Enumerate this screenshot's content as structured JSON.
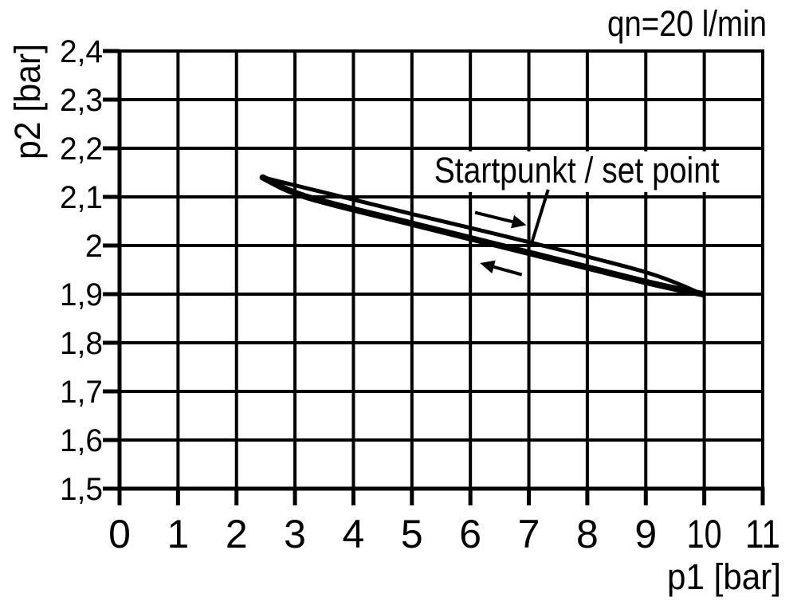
{
  "colors": {
    "foreground": "#000000",
    "background": "#ffffff"
  },
  "chart_data": {
    "type": "line",
    "title": "qn=20 l/min",
    "xlabel": "p1 [bar]",
    "ylabel": "p2 [bar]",
    "xlim": [
      0,
      11
    ],
    "ylim": [
      1.5,
      2.4
    ],
    "grid": true,
    "legend": "none",
    "x_ticks": [
      0,
      1,
      2,
      3,
      4,
      5,
      6,
      7,
      8,
      9,
      10,
      11
    ],
    "x_tick_labels": [
      "0",
      "1",
      "2",
      "3",
      "4",
      "5",
      "6",
      "7",
      "8",
      "9",
      "10",
      "11"
    ],
    "y_ticks": [
      1.5,
      1.6,
      1.7,
      1.8,
      1.9,
      2.0,
      2.1,
      2.2,
      2.3,
      2.4
    ],
    "y_tick_labels": [
      "1,5",
      "1,6",
      "1,7",
      "1,8",
      "1,9",
      "2",
      "2,1",
      "2,2",
      "2,3",
      "2,4"
    ],
    "series": [
      {
        "name": "hysteresis upper branch (p1 increasing)",
        "stroke_px": 5,
        "points": [
          [
            2.45,
            2.14
          ],
          [
            5.0,
            2.065
          ],
          [
            7.0,
            2.007
          ],
          [
            9.0,
            1.945
          ],
          [
            9.97,
            1.9
          ]
        ]
      },
      {
        "name": "hysteresis lower branch (p1 decreasing)",
        "stroke_px": 8,
        "points": [
          [
            2.45,
            2.14
          ],
          [
            3.2,
            2.1
          ],
          [
            5.0,
            2.045
          ],
          [
            7.0,
            1.985
          ],
          [
            9.0,
            1.925
          ],
          [
            9.97,
            1.9
          ]
        ]
      }
    ],
    "arrows": [
      {
        "name": "increase-direction-arrow",
        "direction": "right",
        "from": [
          6.08,
          2.068
        ],
        "to": [
          6.72,
          2.049
        ]
      },
      {
        "name": "decrease-direction-arrow",
        "direction": "left",
        "from": [
          6.88,
          1.94
        ],
        "to": [
          6.4,
          1.956
        ]
      }
    ],
    "annotation": {
      "label": "Startpunkt / set point",
      "pointer_start": [
        7.33,
        2.115
      ],
      "points_to": [
        7.03,
        1.998
      ]
    }
  }
}
